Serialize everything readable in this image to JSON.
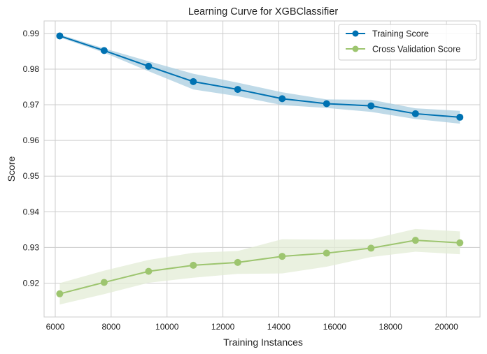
{
  "chart_data": {
    "type": "line",
    "title": "Learning Curve for XGBClassifier",
    "xlabel": "Training Instances",
    "ylabel": "Score",
    "xlim": [
      5600,
      21200
    ],
    "ylim": [
      0.9105,
      0.9935
    ],
    "xticks": [
      6000,
      8000,
      10000,
      12000,
      14000,
      16000,
      18000,
      20000
    ],
    "xtick_labels": [
      "6000",
      "8000",
      "10000",
      "12000",
      "14000",
      "16000",
      "18000",
      "20000"
    ],
    "yticks": [
      0.92,
      0.93,
      0.94,
      0.95,
      0.96,
      0.97,
      0.98,
      0.99
    ],
    "ytick_labels": [
      "0.92",
      "0.93",
      "0.94",
      "0.95",
      "0.96",
      "0.97",
      "0.98",
      "0.99"
    ],
    "grid": true,
    "legend_position": "top-right",
    "x": [
      6160,
      7750,
      9340,
      10940,
      12530,
      14120,
      15710,
      17300,
      18890,
      20480
    ],
    "series": [
      {
        "name": "Training Score",
        "color": "#0072b2",
        "band_color": "#a9cee0",
        "values": [
          0.9893,
          0.9852,
          0.9808,
          0.9765,
          0.9743,
          0.9717,
          0.9703,
          0.9697,
          0.9675,
          0.9665
        ],
        "upper": [
          0.9897,
          0.9858,
          0.9822,
          0.9787,
          0.9762,
          0.9735,
          0.9715,
          0.9714,
          0.969,
          0.9683
        ],
        "lower": [
          0.9889,
          0.9846,
          0.9794,
          0.9743,
          0.9724,
          0.9699,
          0.9691,
          0.968,
          0.966,
          0.9647
        ]
      },
      {
        "name": "Cross Validation Score",
        "color": "#9dc56f",
        "band_color": "#e3ecd6",
        "values": [
          0.917,
          0.9202,
          0.9233,
          0.925,
          0.9258,
          0.9275,
          0.9284,
          0.9298,
          0.932,
          0.9313
        ],
        "upper": [
          0.92,
          0.9235,
          0.9265,
          0.9285,
          0.929,
          0.9323,
          0.9322,
          0.9323,
          0.9352,
          0.9345
        ],
        "lower": [
          0.914,
          0.9169,
          0.9201,
          0.9215,
          0.9226,
          0.9227,
          0.9246,
          0.9273,
          0.9288,
          0.9281
        ]
      }
    ]
  }
}
